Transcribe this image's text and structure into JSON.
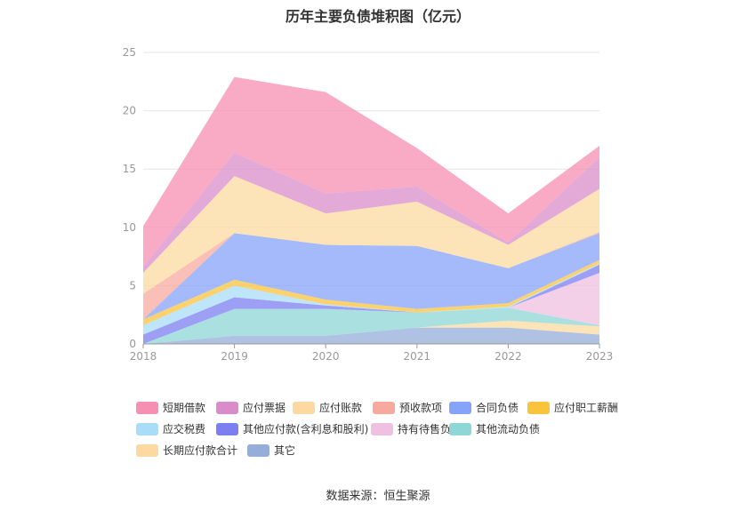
{
  "chart_data": {
    "type": "area",
    "stacked": true,
    "title": "历年主要负债堆积图（亿元）",
    "x": [
      "2018",
      "2019",
      "2020",
      "2021",
      "2022",
      "2023"
    ],
    "yticks": [
      "0",
      "5",
      "10",
      "15",
      "20",
      "25"
    ],
    "ylim": [
      0,
      25
    ],
    "grid": true,
    "legend_position": "bottom",
    "series": [
      {
        "name": "短期借款",
        "color": "#f78fb3",
        "values": [
          3.5,
          6.5,
          8.7,
          3.3,
          2.5,
          1.0
        ]
      },
      {
        "name": "应付票据",
        "color": "#d98cc9",
        "values": [
          0.5,
          2.0,
          1.7,
          1.3,
          0.2,
          2.7
        ]
      },
      {
        "name": "应付账款",
        "color": "#fcd9a0",
        "values": [
          1.8,
          4.9,
          2.7,
          3.8,
          2.0,
          3.7
        ]
      },
      {
        "name": "预收款项",
        "color": "#f8a99e",
        "values": [
          2.2,
          0.0,
          0.0,
          0.0,
          0.0,
          0.1
        ]
      },
      {
        "name": "合同负债",
        "color": "#85a3f8",
        "values": [
          0.0,
          4.0,
          4.7,
          5.4,
          3.0,
          2.3
        ]
      },
      {
        "name": "应付职工薪酬",
        "color": "#f9c33c",
        "values": [
          0.5,
          0.5,
          0.4,
          0.3,
          0.3,
          0.3
        ]
      },
      {
        "name": "应交税费",
        "color": "#a9dcf8",
        "values": [
          0.8,
          1.0,
          0.1,
          0.0,
          0.1,
          0.1
        ]
      },
      {
        "name": "其他应付款(含利息和股利)",
        "color": "#7b7ff0",
        "values": [
          0.8,
          1.0,
          0.3,
          0.0,
          0.0,
          0.7
        ]
      },
      {
        "name": "持有待售负债",
        "color": "#efc0e0",
        "values": [
          0.0,
          0.0,
          0.0,
          0.0,
          0.0,
          4.5
        ]
      },
      {
        "name": "其他流动负债",
        "color": "#8fd6d6",
        "values": [
          0.0,
          2.3,
          2.3,
          1.3,
          1.1,
          0.1
        ]
      },
      {
        "name": "长期应付款合计",
        "color": "#fcd9a0",
        "values": [
          0.0,
          0.0,
          0.0,
          0.0,
          0.6,
          0.7
        ]
      },
      {
        "name": "其它",
        "color": "#95aed9",
        "values": [
          0.0,
          0.7,
          0.7,
          1.4,
          1.4,
          0.8
        ]
      }
    ]
  },
  "footer": {
    "source": "数据来源：恒生聚源"
  }
}
